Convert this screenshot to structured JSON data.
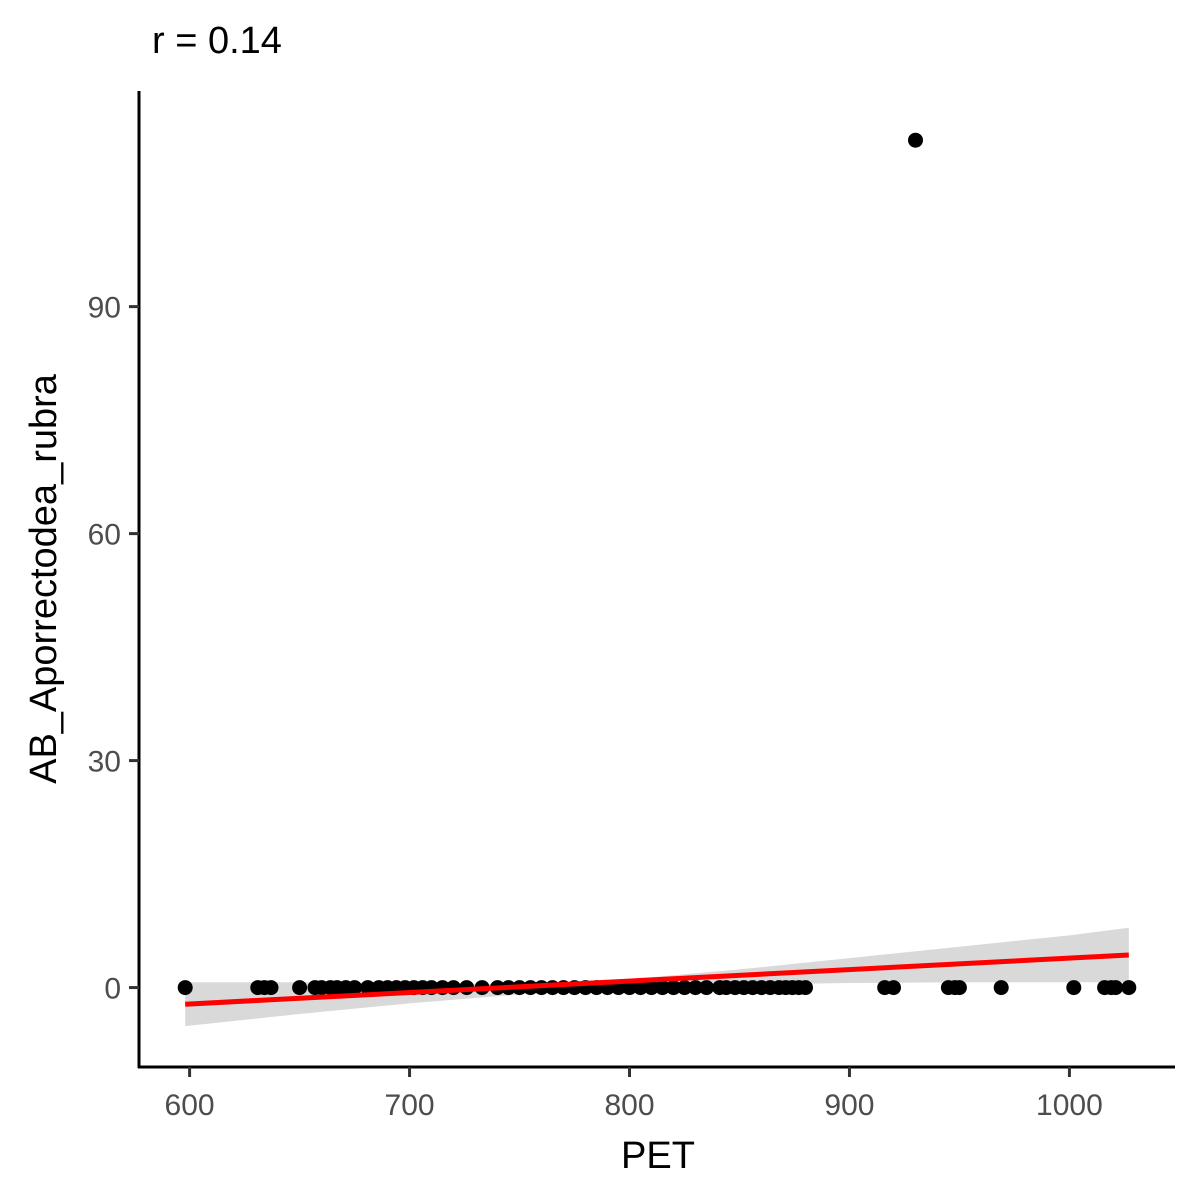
{
  "chart_data": {
    "type": "scatter",
    "title": "r = 0.14",
    "xlabel": "PET",
    "ylabel": "AB_Aporrectodea_rubra",
    "xlim": [
      577,
      1048
    ],
    "ylim": [
      -10.5,
      118.5
    ],
    "x_ticks": [
      600,
      700,
      800,
      900,
      1000
    ],
    "y_ticks": [
      0,
      30,
      60,
      90
    ],
    "x_tick_labels": [
      "600",
      "700",
      "800",
      "900",
      "1000"
    ],
    "y_tick_labels": [
      "0",
      "30",
      "60",
      "90"
    ],
    "grid": false,
    "legend": "none",
    "point_color": "#000000",
    "series": [
      {
        "points": [
          [
            598,
            0
          ],
          [
            631,
            0
          ],
          [
            634,
            0
          ],
          [
            637,
            0
          ],
          [
            650,
            0
          ],
          [
            657,
            0
          ],
          [
            660,
            0
          ],
          [
            664,
            0
          ],
          [
            667,
            0
          ],
          [
            671,
            0
          ],
          [
            675,
            0
          ],
          [
            681,
            0
          ],
          [
            686,
            0
          ],
          [
            690,
            0
          ],
          [
            694,
            0
          ],
          [
            698,
            0
          ],
          [
            702,
            0
          ],
          [
            706,
            0
          ],
          [
            710,
            0
          ],
          [
            715,
            0
          ],
          [
            720,
            0
          ],
          [
            726,
            0
          ],
          [
            733,
            0
          ],
          [
            740,
            0
          ],
          [
            745,
            0
          ],
          [
            750,
            0
          ],
          [
            755,
            0
          ],
          [
            760,
            0
          ],
          [
            765,
            0
          ],
          [
            770,
            0
          ],
          [
            775,
            0
          ],
          [
            780,
            0
          ],
          [
            785,
            0
          ],
          [
            790,
            0
          ],
          [
            795,
            0
          ],
          [
            800,
            0
          ],
          [
            805,
            0
          ],
          [
            810,
            0
          ],
          [
            815,
            0
          ],
          [
            820,
            0
          ],
          [
            825,
            0
          ],
          [
            830,
            0
          ],
          [
            835,
            0
          ],
          [
            841,
            0
          ],
          [
            844,
            0
          ],
          [
            848,
            0
          ],
          [
            852,
            0
          ],
          [
            856,
            0
          ],
          [
            860,
            0
          ],
          [
            864,
            0
          ],
          [
            868,
            0
          ],
          [
            871,
            0
          ],
          [
            874,
            0
          ],
          [
            877,
            0
          ],
          [
            880,
            0
          ],
          [
            916,
            0
          ],
          [
            920,
            0
          ],
          [
            930,
            112
          ],
          [
            945,
            0
          ],
          [
            948,
            0
          ],
          [
            950,
            0
          ],
          [
            969,
            0
          ],
          [
            1002,
            0
          ],
          [
            1016,
            0
          ],
          [
            1019,
            0
          ],
          [
            1021,
            0
          ],
          [
            1027,
            0
          ]
        ]
      }
    ],
    "fit_line": {
      "color": "#ff0000",
      "x": [
        598,
        1027
      ],
      "y": [
        -2.2,
        4.3
      ]
    },
    "confidence_band": {
      "color": "#d9d9d9",
      "x": [
        598,
        650,
        700,
        750,
        800,
        850,
        900,
        950,
        1000,
        1027
      ],
      "lower": [
        -5.1,
        -3.5,
        -2.1,
        -0.9,
        -0.1,
        0.4,
        0.6,
        0.7,
        0.7,
        0.7
      ],
      "upper": [
        0.7,
        0.7,
        0.6,
        0.4,
        1.1,
        2.4,
        3.9,
        5.4,
        6.9,
        7.9
      ]
    }
  }
}
